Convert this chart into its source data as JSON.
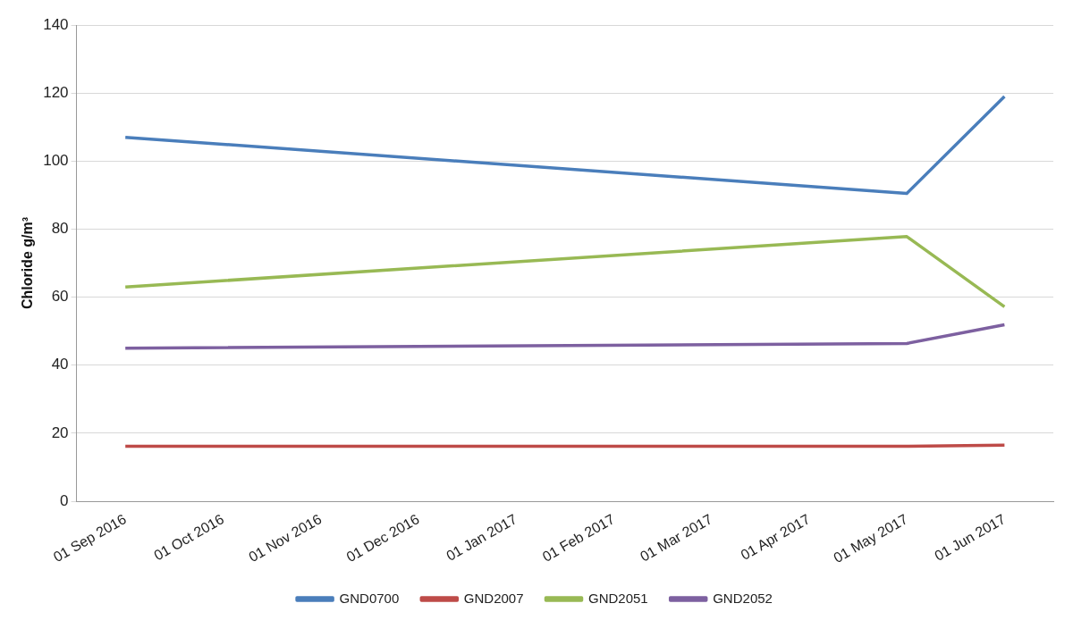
{
  "chart_data": {
    "type": "line",
    "ylabel": "Chloride g/m³",
    "categories": [
      "01 Sep 2016",
      "01 Oct 2016",
      "01 Nov 2016",
      "01 Dec 2016",
      "01 Jan 2017",
      "01 Feb 2017",
      "01 Mar 2017",
      "01 Apr 2017",
      "01 May 2017",
      "01 Jun 2017"
    ],
    "series": [
      {
        "name": "GND0700",
        "color": "#4a7ebb",
        "x": [
          "01 Sep 2016",
          "01 May 2017",
          "01 Jun 2017"
        ],
        "values": [
          107,
          90.5,
          119
        ]
      },
      {
        "name": "GND2007",
        "color": "#be4b48",
        "x": [
          "01 Sep 2016",
          "01 May 2017",
          "01 Jun 2017"
        ],
        "values": [
          16.2,
          16.2,
          16.5
        ]
      },
      {
        "name": "GND2051",
        "color": "#98b954",
        "x": [
          "01 Sep 2016",
          "01 May 2017",
          "01 Jun 2017"
        ],
        "values": [
          63,
          77.8,
          57.2
        ]
      },
      {
        "name": "GND2052",
        "color": "#7d60a0",
        "x": [
          "01 Sep 2016",
          "01 May 2017",
          "01 Jun 2017"
        ],
        "values": [
          45,
          46.4,
          51.9
        ]
      }
    ],
    "ylim": [
      0,
      140
    ],
    "yticks": [
      0,
      20,
      40,
      60,
      80,
      100,
      120,
      140
    ],
    "grid": "y",
    "legend": "bottom",
    "marker": "none",
    "line_style": "solid"
  }
}
